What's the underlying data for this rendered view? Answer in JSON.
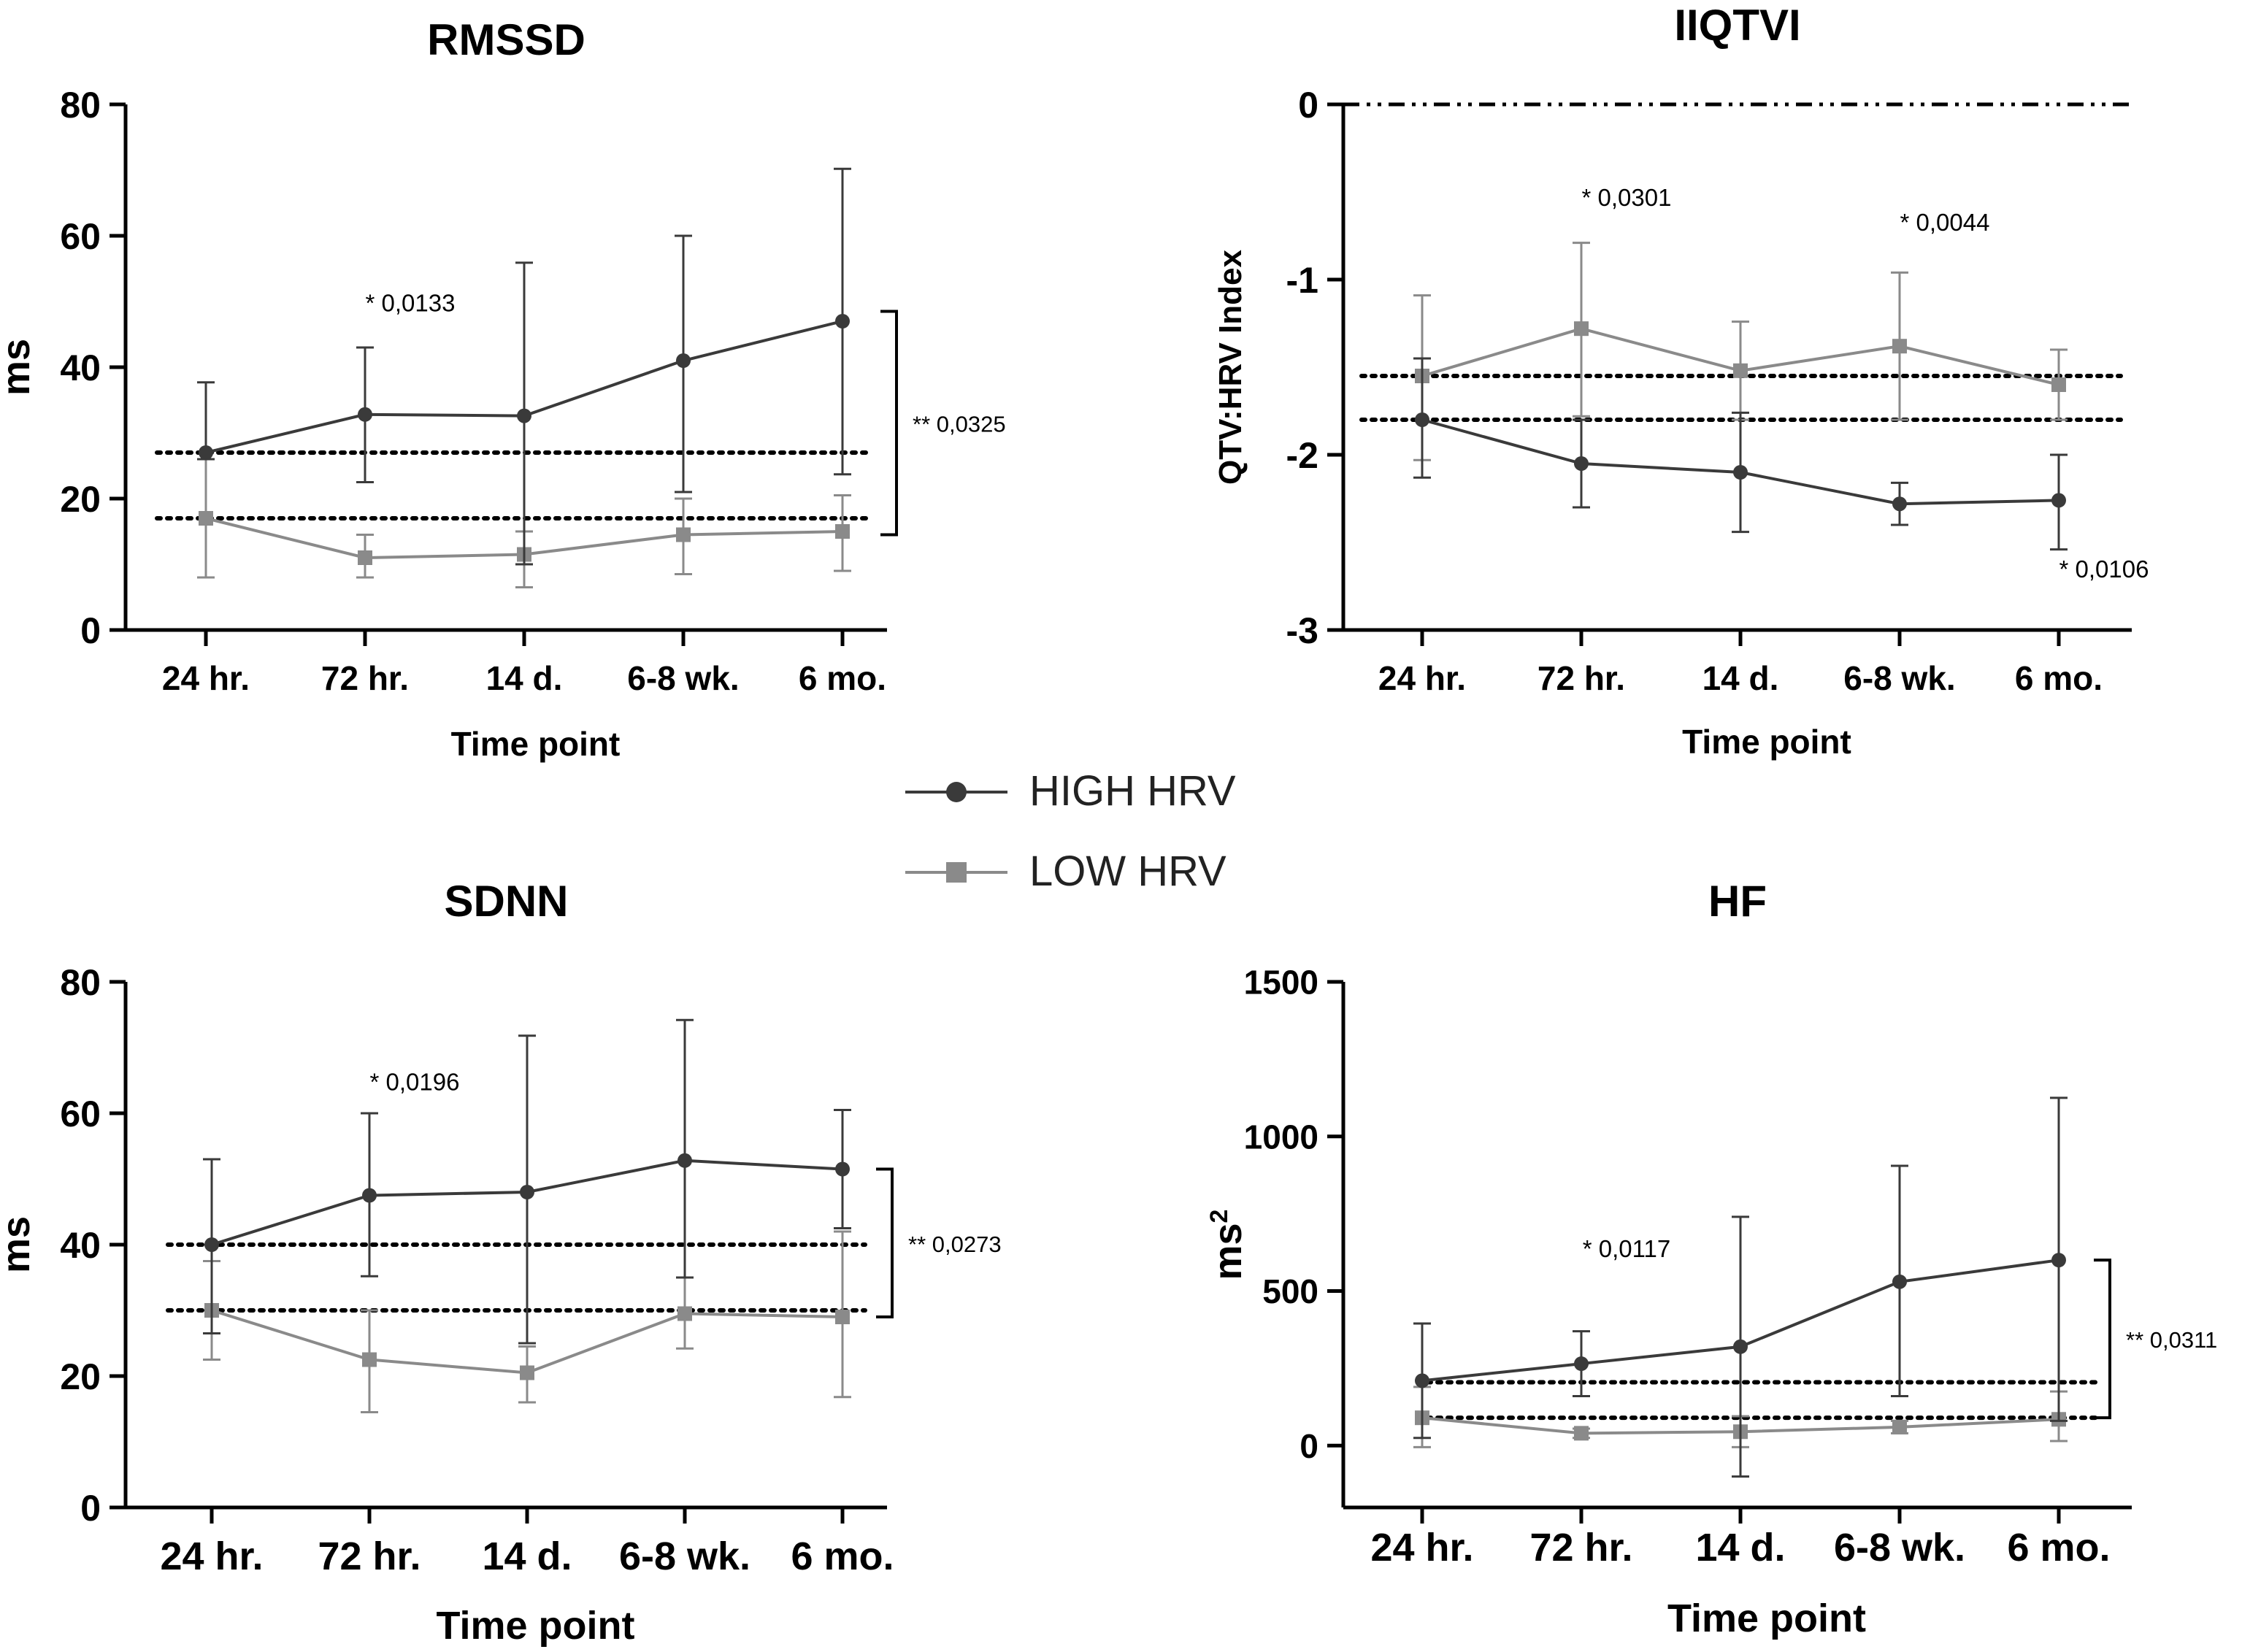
{
  "legend": {
    "items": [
      {
        "label": "HIGH HRV",
        "marker": "circle",
        "color": "#3a3a3a"
      },
      {
        "label": "LOW HRV",
        "marker": "square",
        "color": "#8a8a8a"
      }
    ]
  },
  "chart_data": [
    {
      "id": "rmssd",
      "type": "line",
      "title": "RMSSD",
      "xlabel": "Time point",
      "ylabel": "ms",
      "ylabel_sup": "",
      "categories": [
        "24 hr.",
        "72 hr.",
        "14 d.",
        "6-8 wk.",
        "6 mo."
      ],
      "ylim": [
        0,
        80
      ],
      "yticks": [
        0,
        20,
        40,
        60,
        80
      ],
      "yticklabels": [
        "0",
        "20",
        "40",
        "60",
        "80"
      ],
      "series": [
        {
          "name": "HIGH HRV",
          "marker": "circle",
          "color": "#3a3a3a",
          "values": [
            27,
            32.8,
            32.6,
            41,
            47
          ],
          "err_upper": [
            37.7,
            43,
            55.9,
            60,
            70.2
          ],
          "err_lower": [
            26,
            22.5,
            10,
            21,
            23.7
          ]
        },
        {
          "name": "LOW HRV",
          "marker": "square",
          "color": "#8a8a8a",
          "values": [
            17,
            11,
            11.5,
            14.5,
            15
          ],
          "err_upper": [
            26,
            14.5,
            15,
            20,
            20.5
          ],
          "err_lower": [
            8,
            8,
            6.5,
            8.5,
            9
          ]
        }
      ],
      "reference_lines": [
        27,
        17
      ],
      "annotations": [
        {
          "text": "* 0,0133",
          "x_cat": 1,
          "y": 48.5
        }
      ],
      "bracket": {
        "top": 48.5,
        "bottom": 14.5,
        "text": "** 0,0325"
      }
    },
    {
      "id": "iiqtvi",
      "type": "line",
      "title": "IIQTVI",
      "xlabel": "Time point",
      "ylabel": "QTV:HRV Index",
      "ylabel_sup": "",
      "categories": [
        "24 hr.",
        "72 hr.",
        "14 d.",
        "6-8 wk.",
        "6 mo."
      ],
      "ylim": [
        -3,
        0
      ],
      "yticks": [
        -3,
        -2,
        -1,
        0
      ],
      "yticklabels": [
        "-3",
        "-2",
        "-1",
        "0"
      ],
      "series": [
        {
          "name": "HIGH HRV",
          "marker": "circle",
          "color": "#3a3a3a",
          "values": [
            -1.8,
            -2.05,
            -2.1,
            -2.28,
            -2.26
          ],
          "err_upper": [
            -1.45,
            -1.8,
            -1.76,
            -2.16,
            -2.0
          ],
          "err_lower": [
            -2.13,
            -2.3,
            -2.44,
            -2.4,
            -2.54
          ]
        },
        {
          "name": "LOW HRV",
          "marker": "square",
          "color": "#8a8a8a",
          "values": [
            -1.55,
            -1.28,
            -1.52,
            -1.38,
            -1.6
          ],
          "err_upper": [
            -1.09,
            -0.79,
            -1.24,
            -0.96,
            -1.4
          ],
          "err_lower": [
            -2.03,
            -1.78,
            -1.8,
            -1.8,
            -1.8
          ]
        }
      ],
      "reference_lines": [
        -1.55,
        -1.8
      ],
      "zero_line": 0,
      "annotations": [
        {
          "text": "* 0,0301",
          "x_cat": 1,
          "y": -0.58
        },
        {
          "text": "* 0,0044",
          "x_cat": 3,
          "y": -0.72
        },
        {
          "text": "* 0,0106",
          "x_cat": 4,
          "y": -2.7
        }
      ]
    },
    {
      "id": "sdnn",
      "type": "line",
      "title": "SDNN",
      "xlabel": "Time point",
      "ylabel": "ms",
      "ylabel_sup": "",
      "categories": [
        "24 hr.",
        "72 hr.",
        "14 d.",
        "6-8 wk.",
        "6 mo."
      ],
      "ylim": [
        0,
        80
      ],
      "yticks": [
        0,
        20,
        40,
        60,
        80
      ],
      "yticklabels": [
        "0",
        "20",
        "40",
        "60",
        "80"
      ],
      "series": [
        {
          "name": "HIGH HRV",
          "marker": "circle",
          "color": "#3a3a3a",
          "values": [
            40,
            47.5,
            48,
            52.8,
            51.5
          ],
          "err_upper": [
            53,
            60,
            71.8,
            74.2,
            60.5
          ],
          "err_lower": [
            26.5,
            35.2,
            25,
            35,
            42.5
          ]
        },
        {
          "name": "LOW HRV",
          "marker": "square",
          "color": "#8a8a8a",
          "values": [
            30,
            22.5,
            20.5,
            29.5,
            29
          ],
          "err_upper": [
            37.5,
            30,
            24.5,
            35,
            42
          ],
          "err_lower": [
            22.5,
            14.5,
            16,
            24.2,
            16.8
          ]
        }
      ],
      "reference_lines": [
        40,
        30
      ],
      "annotations": [
        {
          "text": "* 0,0196",
          "x_cat": 1,
          "y": 63.5
        }
      ],
      "bracket": {
        "top": 51.5,
        "bottom": 29,
        "text": "** 0,0273"
      }
    },
    {
      "id": "hf",
      "type": "line",
      "title": "HF",
      "xlabel": "Time point",
      "ylabel": "ms",
      "ylabel_sup": "2",
      "categories": [
        "24 hr.",
        "72 hr.",
        "14 d.",
        "6-8 wk.",
        "6 mo."
      ],
      "ylim": [
        -200,
        1500
      ],
      "yticks": [
        0,
        500,
        1000,
        1500
      ],
      "yticklabels": [
        "0",
        "500",
        "1000",
        "1500"
      ],
      "series": [
        {
          "name": "HIGH HRV",
          "marker": "circle",
          "color": "#3a3a3a",
          "values": [
            210,
            265,
            320,
            530,
            600
          ],
          "err_upper": [
            395,
            370,
            740,
            905,
            1125
          ],
          "err_lower": [
            25,
            160,
            -100,
            160,
            80
          ]
        },
        {
          "name": "LOW HRV",
          "marker": "square",
          "color": "#8a8a8a",
          "values": [
            90,
            40,
            45,
            60,
            85
          ],
          "err_upper": [
            190,
            55,
            95,
            80,
            175
          ],
          "err_lower": [
            -5,
            25,
            -5,
            40,
            15
          ]
        }
      ],
      "reference_lines": [
        205,
        90
      ],
      "annotations": [
        {
          "text": "* 0,0117",
          "x_cat": 1,
          "y": 610
        }
      ],
      "bracket": {
        "top": 600,
        "bottom": 90,
        "text": "** 0,0311"
      }
    }
  ]
}
